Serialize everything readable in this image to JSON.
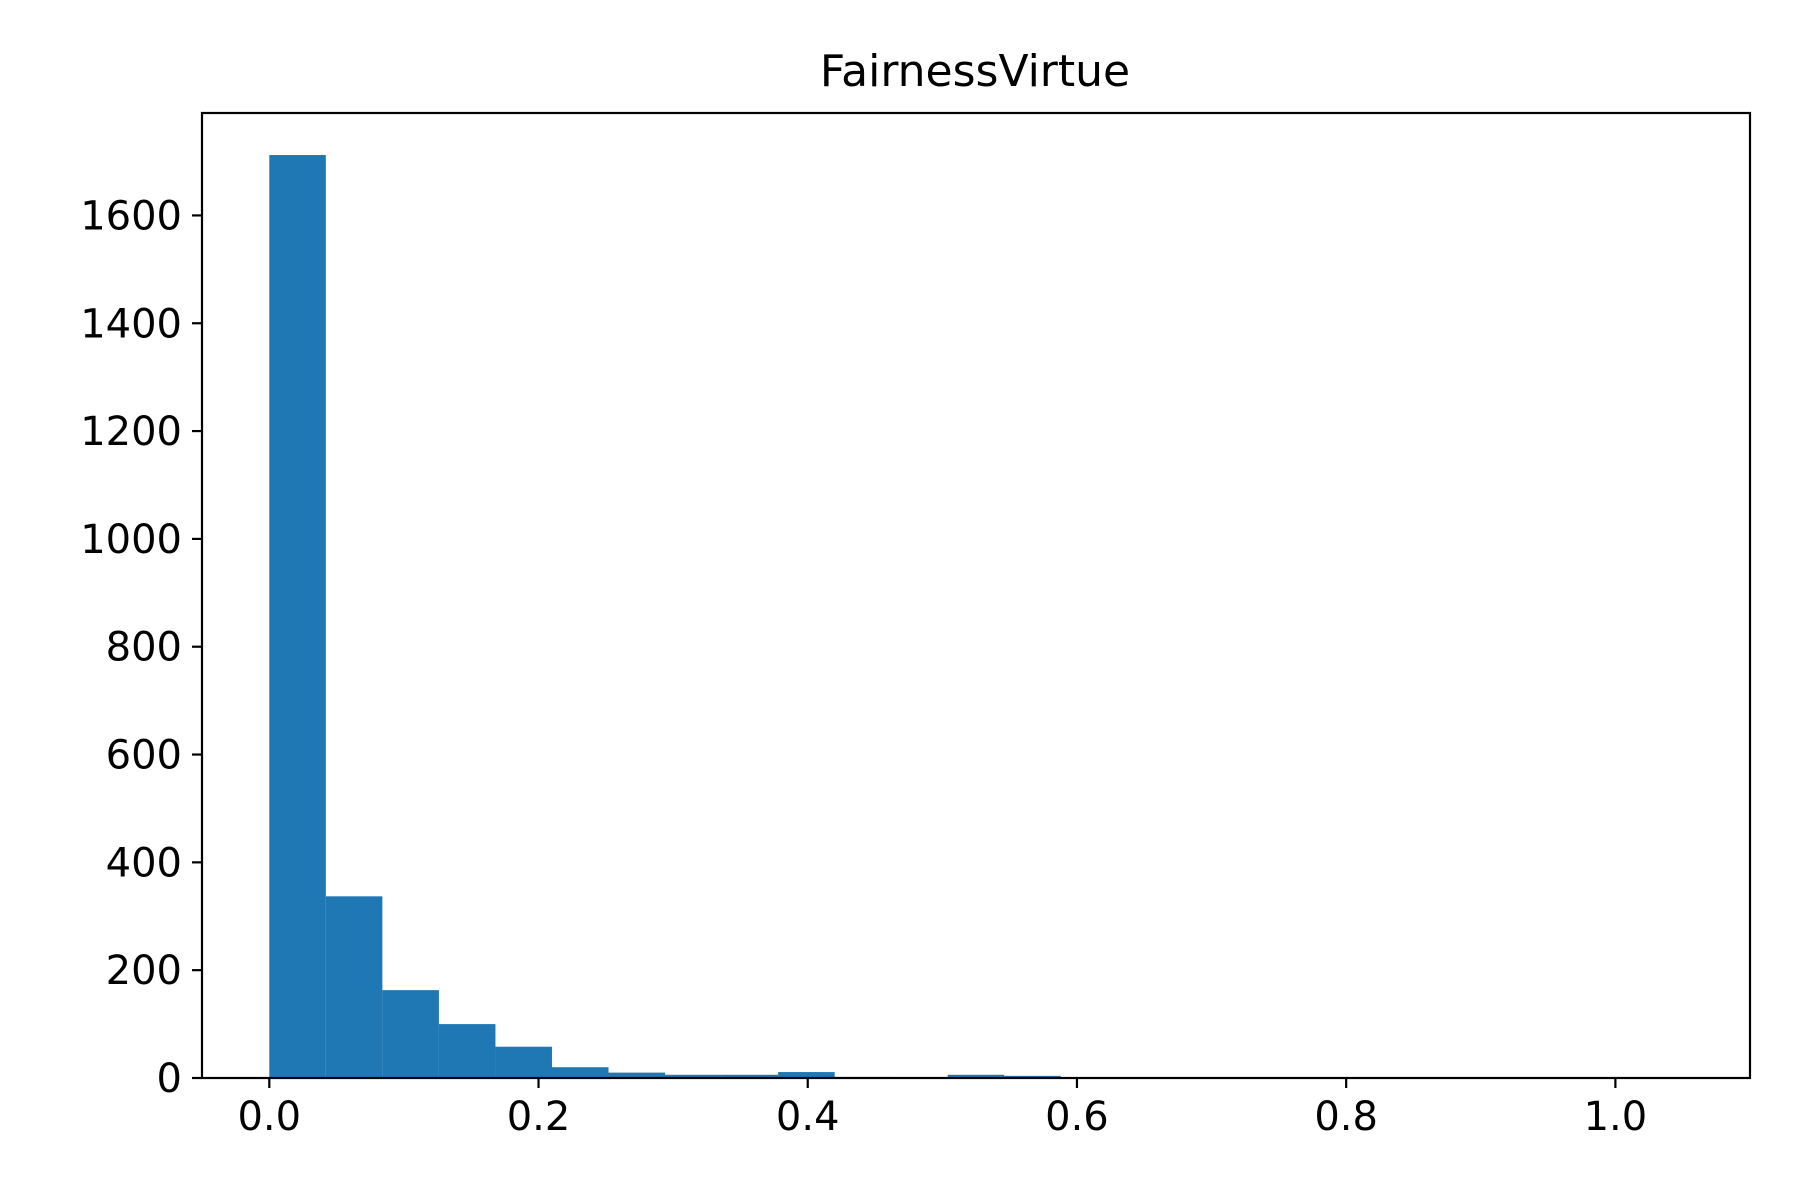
{
  "chart_data": {
    "type": "bar",
    "title": "FairnessVirtue",
    "xlabel": "",
    "ylabel": "",
    "bar_color": "#1f77b4",
    "xlim": [
      -0.05,
      1.1
    ],
    "ylim": [
      0,
      1790
    ],
    "bin_edges": [
      0.0,
      0.042,
      0.084,
      0.126,
      0.168,
      0.21,
      0.252,
      0.294,
      0.336,
      0.378,
      0.42,
      0.462,
      0.504,
      0.546,
      0.588
    ],
    "counts": [
      1712,
      337,
      163,
      100,
      58,
      20,
      10,
      6,
      6,
      11,
      2,
      1,
      6,
      4
    ],
    "x_ticks": [
      0.0,
      0.2,
      0.4,
      0.6,
      0.8,
      1.0
    ],
    "x_tick_labels": [
      "0.0",
      "0.2",
      "0.4",
      "0.6",
      "0.8",
      "1.0"
    ],
    "y_ticks": [
      0,
      200,
      400,
      600,
      800,
      1000,
      1200,
      1400,
      1600
    ],
    "y_tick_labels": [
      "0",
      "200",
      "400",
      "600",
      "800",
      "1000",
      "1200",
      "1400",
      "1600"
    ],
    "grid": false
  }
}
